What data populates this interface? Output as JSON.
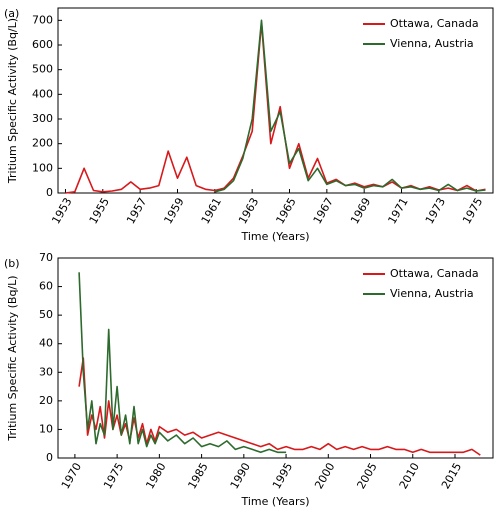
{
  "chart_data": [
    {
      "type": "line",
      "panel_label": "(a)",
      "xlabel": "Time (Years)",
      "ylabel": "Tritium Specific Activity (Bq/L)",
      "xlim": [
        1952.6,
        1975.9
      ],
      "xticks": [
        1953,
        1955,
        1957,
        1959,
        1961,
        1963,
        1965,
        1967,
        1969,
        1971,
        1973,
        1975
      ],
      "ylim": [
        0,
        750
      ],
      "yticks": [
        0,
        100,
        200,
        300,
        400,
        500,
        600,
        700
      ],
      "legend": "upper right",
      "x": [
        1953,
        1953.5,
        1954,
        1954.5,
        1955,
        1955.5,
        1956,
        1956.5,
        1957,
        1957.5,
        1958,
        1958.5,
        1959,
        1959.5,
        1960,
        1960.5,
        1961,
        1961.5,
        1962,
        1962.5,
        1963,
        1963.5,
        1964,
        1964.5,
        1965,
        1965.5,
        1966,
        1966.5,
        1967,
        1967.5,
        1968,
        1968.5,
        1969,
        1969.5,
        1970,
        1970.5,
        1971,
        1971.5,
        1972,
        1972.5,
        1973,
        1973.5,
        1974,
        1974.5,
        1975,
        1975.5
      ],
      "series": [
        {
          "name": "Ottawa, Canada",
          "color": "#d7191c",
          "values": [
            0,
            5,
            100,
            10,
            5,
            8,
            15,
            45,
            15,
            20,
            30,
            170,
            60,
            145,
            30,
            15,
            10,
            20,
            60,
            150,
            250,
            690,
            200,
            350,
            100,
            200,
            60,
            140,
            40,
            55,
            30,
            40,
            25,
            35,
            25,
            45,
            20,
            30,
            15,
            25,
            12,
            20,
            10,
            30,
            8,
            15
          ]
        },
        {
          "name": "Vienna, Austria",
          "color": "#2d6a2d",
          "values": [
            null,
            null,
            null,
            null,
            null,
            null,
            null,
            null,
            null,
            null,
            null,
            null,
            null,
            null,
            null,
            null,
            5,
            15,
            50,
            140,
            300,
            700,
            250,
            330,
            120,
            180,
            50,
            100,
            35,
            50,
            30,
            35,
            20,
            30,
            25,
            55,
            20,
            25,
            15,
            20,
            10,
            35,
            10,
            20,
            8,
            12
          ]
        }
      ]
    },
    {
      "type": "line",
      "panel_label": "(b)",
      "xlabel": "Time (Years)",
      "ylabel": "Tritium Specific Activity (Bq/L)",
      "xlim": [
        1968,
        2019.5
      ],
      "xticks": [
        1970,
        1975,
        1980,
        1985,
        1990,
        1995,
        2000,
        2005,
        2010,
        2015
      ],
      "ylim": [
        0,
        70
      ],
      "yticks": [
        0,
        10,
        20,
        30,
        40,
        50,
        60,
        70
      ],
      "legend": "upper right",
      "x": [
        1970.5,
        1971,
        1971.5,
        1972,
        1972.5,
        1973,
        1973.5,
        1974,
        1974.5,
        1975,
        1975.5,
        1976,
        1976.5,
        1977,
        1977.5,
        1978,
        1978.5,
        1979,
        1979.5,
        1980,
        1981,
        1982,
        1983,
        1984,
        1985,
        1986,
        1987,
        1988,
        1989,
        1990,
        1991,
        1992,
        1993,
        1994,
        1995,
        1996,
        1997,
        1998,
        1999,
        2000,
        2001,
        2002,
        2003,
        2004,
        2005,
        2006,
        2007,
        2008,
        2009,
        2010,
        2011,
        2012,
        2013,
        2014,
        2015,
        2016,
        2017,
        2018
      ],
      "series": [
        {
          "name": "Ottawa, Canada",
          "color": "#d7191c",
          "values": [
            25,
            35,
            8,
            15,
            10,
            18,
            7,
            20,
            10,
            15,
            8,
            12,
            6,
            14,
            7,
            12,
            5,
            10,
            6,
            11,
            9,
            10,
            8,
            9,
            7,
            8,
            9,
            8,
            7,
            6,
            5,
            4,
            5,
            3,
            4,
            3,
            3,
            4,
            3,
            5,
            3,
            4,
            3,
            4,
            3,
            3,
            4,
            3,
            3,
            2,
            3,
            2,
            2,
            2,
            2,
            2,
            3,
            1
          ]
        },
        {
          "name": "Vienna, Austria",
          "color": "#2d6a2d",
          "values": [
            65,
            30,
            10,
            20,
            5,
            12,
            8,
            45,
            10,
            25,
            8,
            15,
            5,
            18,
            5,
            10,
            4,
            8,
            5,
            9,
            6,
            8,
            5,
            7,
            4,
            5,
            4,
            6,
            3,
            4,
            3,
            2,
            3,
            2,
            2,
            null,
            null,
            null,
            null,
            null,
            null,
            null,
            null,
            null,
            null,
            null,
            null,
            null,
            null,
            null,
            null,
            null,
            null,
            null,
            null,
            null,
            null,
            null
          ]
        }
      ]
    }
  ]
}
